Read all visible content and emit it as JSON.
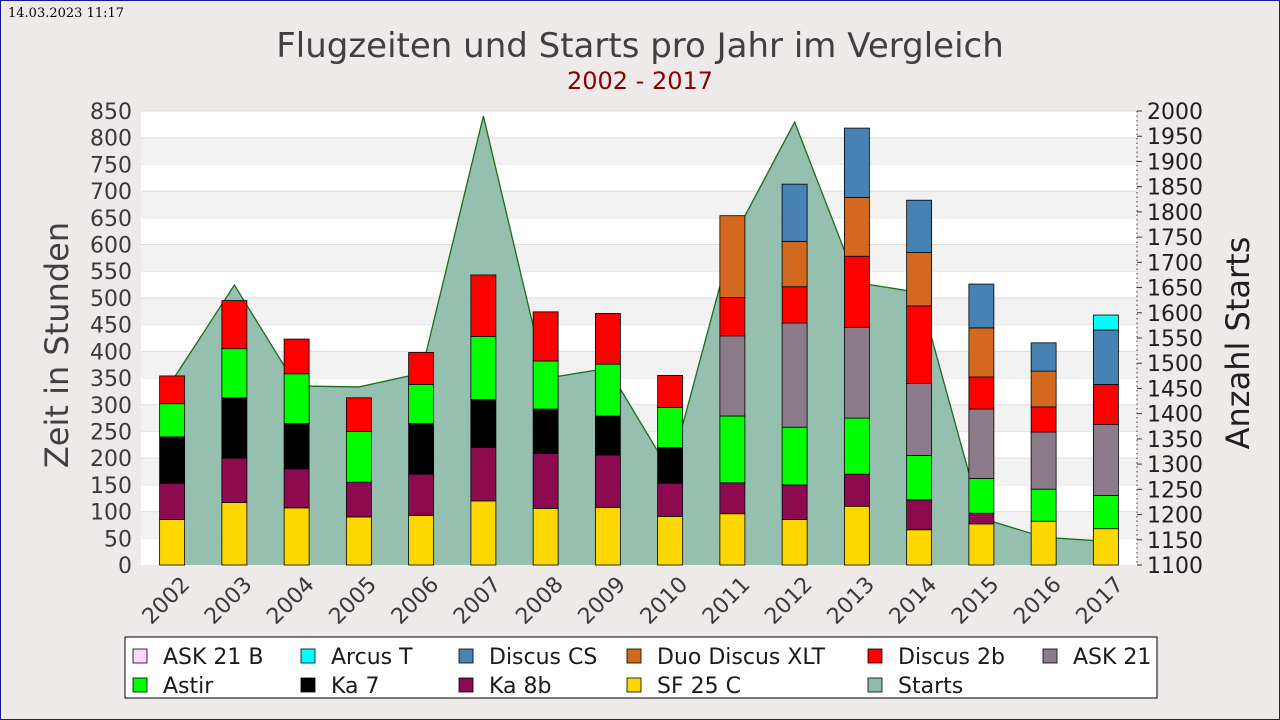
{
  "timestamp": "14.03.2023 11:17",
  "colors": {
    "ASK 21 B": "#ffd6ff",
    "Arcus T": "#00ffff",
    "Discus CS": "#4682b4",
    "Duo Discus XLT": "#d2691e",
    "Discus 2b": "#ff0000",
    "ASK 21": "#8b7b8b",
    "Astir": "#00ff00",
    "Ka 7": "#000000",
    "Ka 8b": "#8b0a50",
    "SF 25 C": "#ffd700",
    "Starts": "#8fbcaa"
  },
  "chart_data": {
    "type": "bar",
    "stacked": true,
    "title": "Flugzeiten und Starts pro Jahr im Vergleich",
    "subtitle": "2002 - 2017",
    "ylabel": "Zeit in Stunden",
    "y2label": "Anzahl Starts",
    "ylim": [
      0,
      850
    ],
    "y2lim": [
      1100,
      2000
    ],
    "yticks": [
      "0",
      "50",
      "100",
      "150",
      "200",
      "250",
      "300",
      "350",
      "400",
      "450",
      "500",
      "550",
      "600",
      "650",
      "700",
      "750",
      "800",
      "850"
    ],
    "y2ticks": [
      "1100",
      "1150",
      "1200",
      "1250",
      "1300",
      "1350",
      "1400",
      "1450",
      "1500",
      "1550",
      "1600",
      "1650",
      "1700",
      "1750",
      "1800",
      "1850",
      "1900",
      "1950",
      "2000"
    ],
    "grid": true,
    "legend_position": "bottom",
    "legend": [
      "ASK 21 B",
      "Arcus T",
      "Discus CS",
      "Duo Discus XLT",
      "Discus 2b",
      "ASK 21",
      "Astir",
      "Ka 7",
      "Ka 8b",
      "SF 25 C",
      "Starts"
    ],
    "categories": [
      "2002",
      "2003",
      "2004",
      "2005",
      "2006",
      "2007",
      "2008",
      "2009",
      "2010",
      "2011",
      "2012",
      "2013",
      "2014",
      "2015",
      "2016",
      "2017"
    ],
    "series": [
      {
        "name": "SF 25 C",
        "values": [
          85,
          117,
          107,
          90,
          93,
          120,
          106,
          108,
          91,
          96,
          85,
          110,
          66,
          77,
          82,
          68
        ]
      },
      {
        "name": "Ka 8b",
        "values": [
          68,
          83,
          73,
          65,
          77,
          100,
          103,
          98,
          62,
          58,
          65,
          60,
          56,
          20,
          0,
          0
        ]
      },
      {
        "name": "Ka 7",
        "values": [
          87,
          113,
          85,
          0,
          95,
          90,
          83,
          73,
          67,
          0,
          0,
          0,
          0,
          0,
          0,
          0
        ]
      },
      {
        "name": "Astir",
        "values": [
          62,
          92,
          93,
          95,
          73,
          118,
          90,
          97,
          75,
          125,
          108,
          105,
          83,
          65,
          60,
          62
        ]
      },
      {
        "name": "ASK 21",
        "values": [
          0,
          0,
          0,
          0,
          0,
          0,
          0,
          0,
          0,
          150,
          195,
          170,
          135,
          130,
          107,
          133
        ]
      },
      {
        "name": "Discus 2b",
        "values": [
          52,
          90,
          65,
          63,
          60,
          115,
          92,
          95,
          60,
          72,
          68,
          133,
          145,
          60,
          47,
          75
        ]
      },
      {
        "name": "Duo Discus XLT",
        "values": [
          0,
          0,
          0,
          0,
          0,
          0,
          0,
          0,
          0,
          153,
          85,
          110,
          100,
          92,
          67,
          0
        ]
      },
      {
        "name": "Discus CS",
        "values": [
          0,
          0,
          0,
          0,
          0,
          0,
          0,
          0,
          0,
          0,
          107,
          130,
          98,
          82,
          53,
          102
        ]
      },
      {
        "name": "Arcus T",
        "values": [
          0,
          0,
          0,
          0,
          0,
          0,
          0,
          0,
          0,
          0,
          0,
          0,
          0,
          0,
          0,
          28
        ]
      },
      {
        "name": "ASK 21 B",
        "values": [
          0,
          0,
          0,
          0,
          0,
          0,
          0,
          0,
          0,
          0,
          0,
          0,
          0,
          0,
          0,
          0
        ]
      }
    ],
    "starts": {
      "name": "Starts",
      "axis": "right",
      "type": "area",
      "values": [
        1465,
        1655,
        1455,
        1453,
        1480,
        1990,
        1470,
        1490,
        1285,
        1745,
        1978,
        1660,
        1640,
        1193,
        1155,
        1147
      ]
    }
  }
}
